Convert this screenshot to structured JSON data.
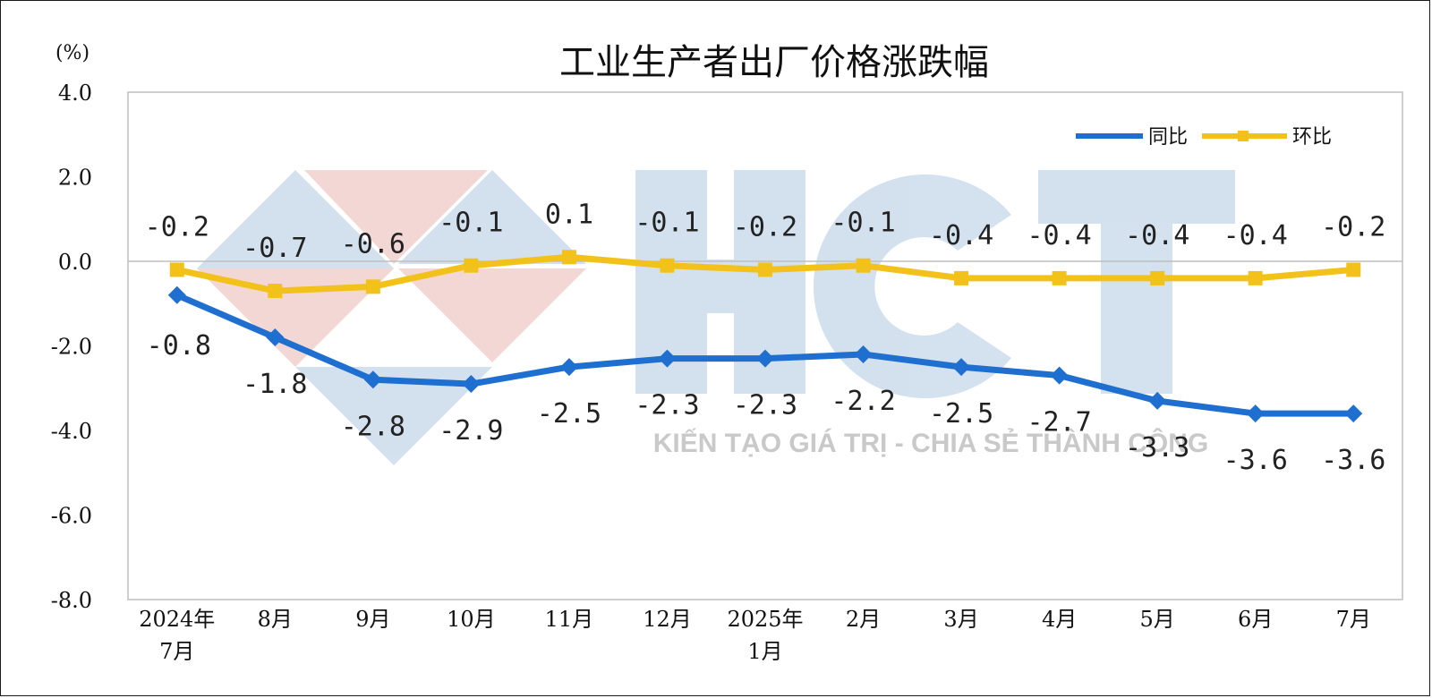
{
  "chart_data": {
    "type": "line",
    "title": "工业生产者出厂价格涨跌幅",
    "unit_label": "(%)",
    "categories": [
      [
        "2024年",
        "7月"
      ],
      [
        "8月"
      ],
      [
        "9月"
      ],
      [
        "10月"
      ],
      [
        "11月"
      ],
      [
        "12月"
      ],
      [
        "2025年",
        "1月"
      ],
      [
        "2月"
      ],
      [
        "3月"
      ],
      [
        "4月"
      ],
      [
        "5月"
      ],
      [
        "6月"
      ],
      [
        "7月"
      ]
    ],
    "ylim": [
      -8.0,
      4.0
    ],
    "yticks": [
      "4.0",
      "2.0",
      "0.0",
      "-2.0",
      "-4.0",
      "-6.0",
      "-8.0"
    ],
    "ytick_values": [
      4,
      2,
      0,
      -2,
      -4,
      -6,
      -8
    ],
    "grid": false,
    "legend_position": "top-right",
    "series": [
      {
        "name": "同比",
        "color": "#1f6fd1",
        "marker": "diamond",
        "values": [
          -0.8,
          -1.8,
          -2.8,
          -2.9,
          -2.5,
          -2.3,
          -2.3,
          -2.2,
          -2.5,
          -2.7,
          -3.3,
          -3.6,
          -3.6
        ],
        "labels": [
          "-0.8",
          "-1.8",
          "-2.8",
          "-2.9",
          "-2.5",
          "-2.3",
          "-2.3",
          "-2.2",
          "-2.5",
          "-2.7",
          "-3.3",
          "-3.6",
          "-3.6"
        ]
      },
      {
        "name": "环比",
        "color": "#f2c21b",
        "marker": "square",
        "values": [
          -0.2,
          -0.7,
          -0.6,
          -0.1,
          0.1,
          -0.1,
          -0.2,
          -0.1,
          -0.4,
          -0.4,
          -0.4,
          -0.4,
          -0.2
        ],
        "labels": [
          "-0.2",
          "-0.7",
          "-0.6",
          "-0.1",
          "0.1",
          "-0.1",
          "-0.2",
          "-0.1",
          "-0.4",
          "-0.4",
          "-0.4",
          "-0.4",
          "-0.2"
        ]
      }
    ]
  },
  "watermark": {
    "logo_text": "HCT",
    "tagline": "KIẾN TẠO GIÁ TRỊ - CHIA SẺ THÀNH CÔNG",
    "logo_color": "#2b6cb0",
    "accent_color": "#c0392b"
  }
}
